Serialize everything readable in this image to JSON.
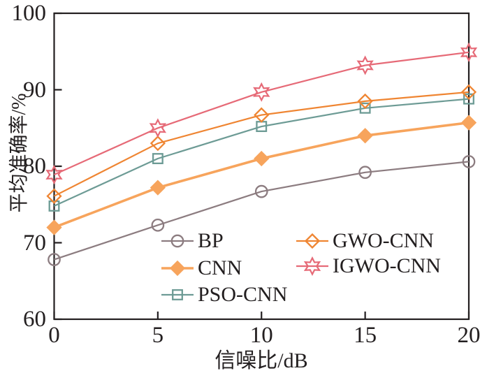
{
  "chart_data": {
    "type": "line",
    "title": "",
    "xlabel": "信噪比/dB",
    "ylabel": "平均准确率/%",
    "x": [
      0,
      5,
      10,
      15,
      20
    ],
    "xlim": [
      0,
      20
    ],
    "ylim": [
      60,
      100
    ],
    "xticks": [
      0,
      5,
      10,
      15,
      20
    ],
    "yticks": [
      60,
      70,
      80,
      90,
      100
    ],
    "grid": false,
    "axis_box": true,
    "tick_direction": "in",
    "legend_position": "inside-lower-center",
    "axis_color": "#231f20",
    "background_color": "#ffffff",
    "series": [
      {
        "name": "BP",
        "marker": "circle-open",
        "color": "#8c7c80",
        "linewidth": 2.2,
        "values": [
          67.8,
          72.3,
          76.7,
          79.2,
          80.6
        ]
      },
      {
        "name": "CNN",
        "marker": "diamond-filled",
        "color": "#f7a45c",
        "linewidth": 3.6,
        "values": [
          72.0,
          77.2,
          81.0,
          84.0,
          85.7
        ]
      },
      {
        "name": "PSO-CNN",
        "marker": "square-open",
        "color": "#6d9b95",
        "linewidth": 2.2,
        "values": [
          74.8,
          81.0,
          85.2,
          87.6,
          88.8
        ]
      },
      {
        "name": "GWO-CNN",
        "marker": "diamond-open",
        "color": "#ef8532",
        "linewidth": 2.2,
        "values": [
          76.1,
          83.0,
          86.7,
          88.5,
          89.7
        ]
      },
      {
        "name": "IGWO-CNN",
        "marker": "star6-open",
        "color": "#e66a77",
        "linewidth": 2.2,
        "values": [
          78.9,
          85.0,
          89.7,
          93.2,
          94.9
        ]
      }
    ]
  }
}
